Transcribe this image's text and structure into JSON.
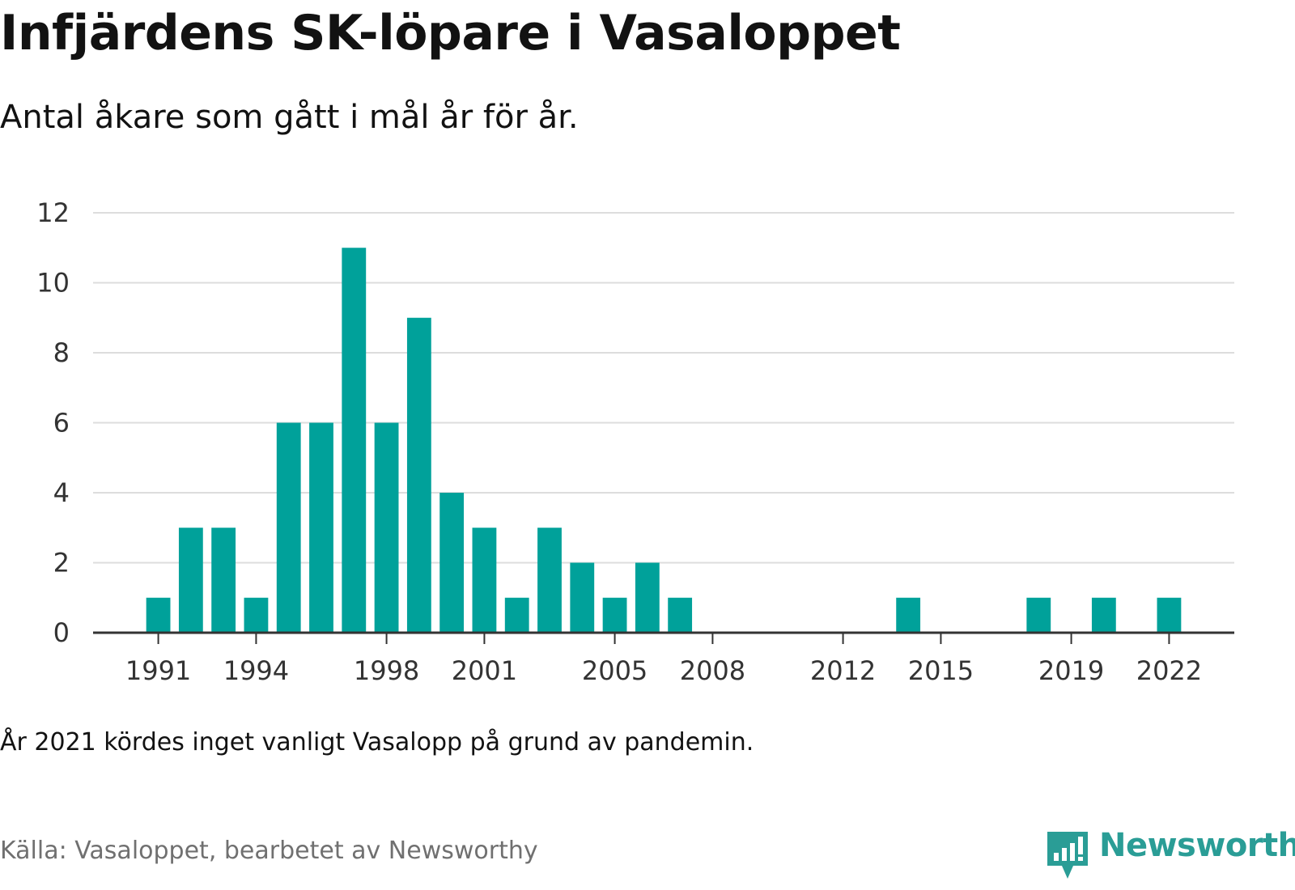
{
  "header": {
    "title": "Infjärdens SK-löpare i Vasaloppet",
    "subtitle": "Antal åkare som gått i mål år för år."
  },
  "footer": {
    "note": "År 2021 kördes inget vanligt Vasalopp på grund av pandemin.",
    "source": "Källa: Vasaloppet, bearbetet av Newsworthy",
    "logo_text": "Newsworthy"
  },
  "colors": {
    "bar": "#00a19a",
    "grid": "#dddddd",
    "axis": "#333333",
    "logo": "#2a9d96"
  },
  "chart_data": {
    "type": "bar",
    "title": "Infjärdens SK-löpare i Vasaloppet",
    "subtitle": "Antal åkare som gått i mål år för år.",
    "xlabel": "",
    "ylabel": "",
    "ylim": [
      0,
      12
    ],
    "yticks": [
      0,
      2,
      4,
      6,
      8,
      10,
      12
    ],
    "xlim": [
      1989,
      2024
    ],
    "xticks": [
      1991,
      1994,
      1998,
      2001,
      2005,
      2008,
      2012,
      2015,
      2019,
      2022
    ],
    "grid": true,
    "x": [
      1991,
      1992,
      1993,
      1994,
      1995,
      1996,
      1997,
      1998,
      1999,
      2000,
      2001,
      2002,
      2003,
      2004,
      2005,
      2006,
      2007,
      2014,
      2018,
      2020,
      2022
    ],
    "values": [
      1,
      3,
      3,
      1,
      6,
      6,
      11,
      6,
      9,
      4,
      3,
      1,
      3,
      2,
      1,
      2,
      1,
      1,
      1,
      1,
      1
    ]
  }
}
